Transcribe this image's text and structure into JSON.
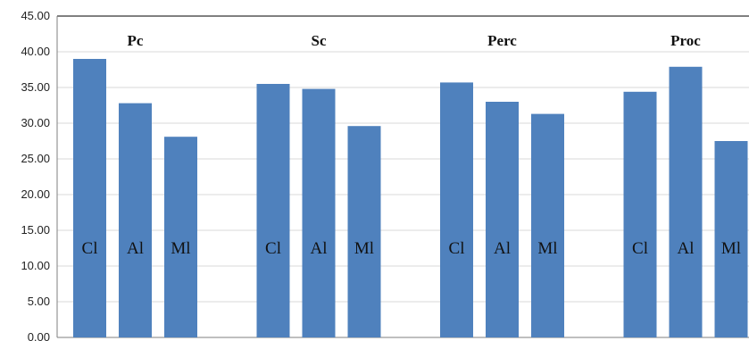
{
  "chart_data": {
    "type": "bar",
    "title": "",
    "xlabel": "",
    "ylabel": "",
    "ylim": [
      0,
      45
    ],
    "y_ticks": [
      "0.00",
      "5.00",
      "10.00",
      "15.00",
      "20.00",
      "25.00",
      "30.00",
      "35.00",
      "40.00",
      "45.00"
    ],
    "grid": true,
    "bar_color": "#4f81bd",
    "groups": [
      {
        "label": "Pc",
        "bars": [
          {
            "label": "Cl",
            "value": 39.0
          },
          {
            "label": "Al",
            "value": 32.8
          },
          {
            "label": "Ml",
            "value": 28.1
          }
        ]
      },
      {
        "label": "Sc",
        "bars": [
          {
            "label": "Cl",
            "value": 35.5
          },
          {
            "label": "Al",
            "value": 34.8
          },
          {
            "label": "Ml",
            "value": 29.6
          }
        ]
      },
      {
        "label": "Perc",
        "bars": [
          {
            "label": "Cl",
            "value": 35.7
          },
          {
            "label": "Al",
            "value": 33.0
          },
          {
            "label": "Ml",
            "value": 31.3
          }
        ]
      },
      {
        "label": "Proc",
        "bars": [
          {
            "label": "Cl",
            "value": 34.4
          },
          {
            "label": "Al",
            "value": 37.9
          },
          {
            "label": "Ml",
            "value": 27.5
          }
        ]
      }
    ]
  }
}
